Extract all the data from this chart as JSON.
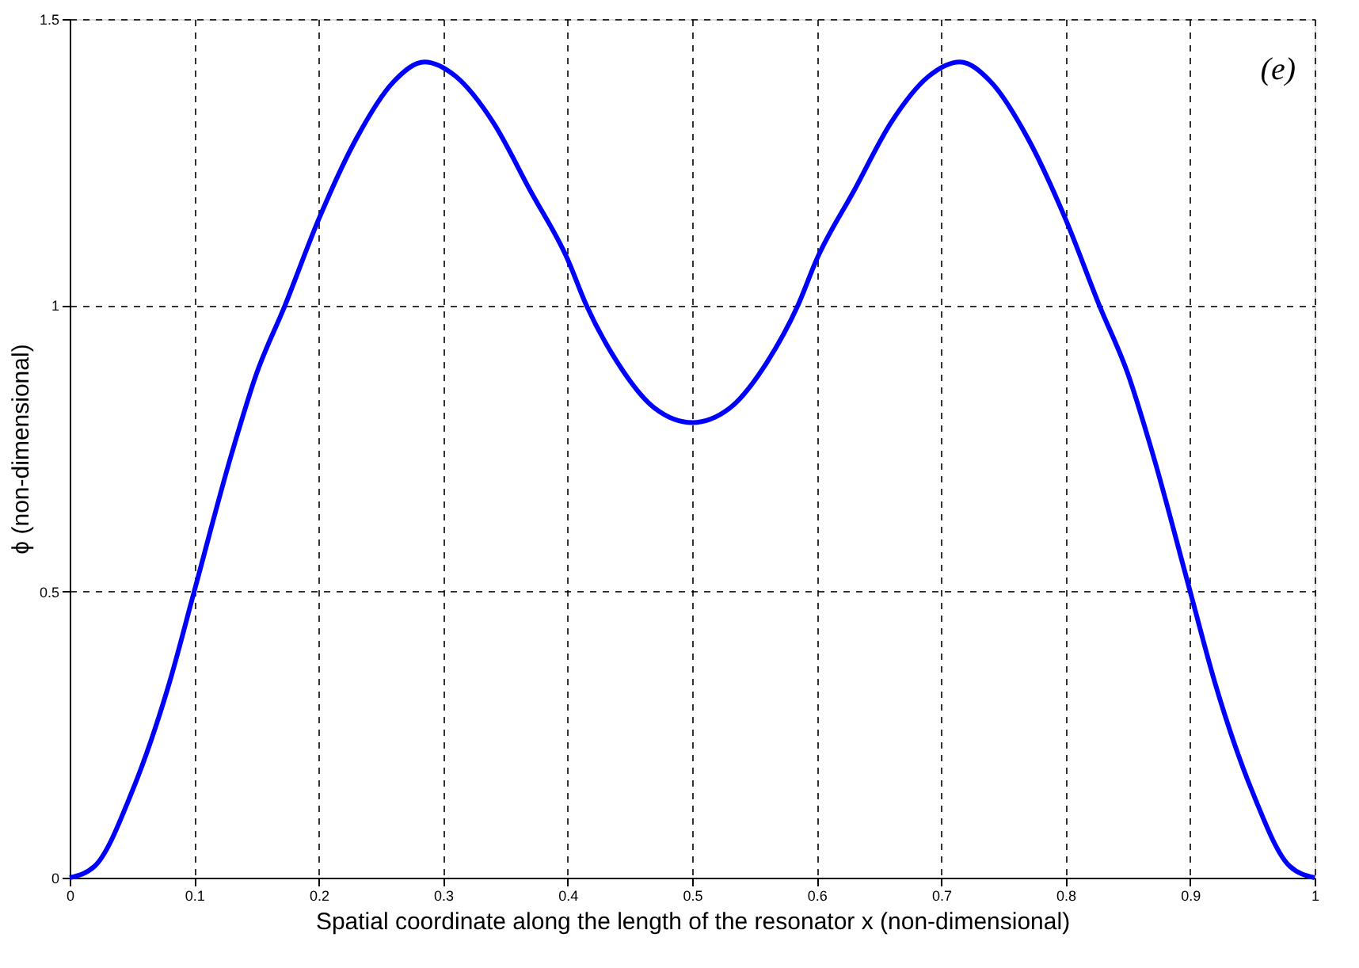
{
  "chart_data": {
    "type": "line",
    "xlabel": "Spatial coordinate along the length of the resonator x (non-dimensional)",
    "ylabel": "ϕ  (non-dimensional)",
    "annotations": [
      "(e)"
    ],
    "x": [
      0,
      0.02,
      0.05,
      0.08,
      0.1,
      0.13,
      0.15,
      0.173,
      0.2,
      0.23,
      0.26,
      0.285,
      0.31,
      0.34,
      0.37,
      0.4,
      0.415,
      0.44,
      0.47,
      0.5,
      0.53,
      0.56,
      0.585,
      0.6,
      0.63,
      0.66,
      0.69,
      0.715,
      0.74,
      0.77,
      0.8,
      0.827,
      0.85,
      0.87,
      0.9,
      0.92,
      0.95,
      0.98,
      1
    ],
    "series": [
      {
        "color": "#0000ff",
        "values": [
          0,
          0.02,
          0.15,
          0.34,
          0.5,
          0.74,
          0.88,
          1.0,
          1.15,
          1.29,
          1.39,
          1.425,
          1.4,
          1.32,
          1.2,
          1.08,
          1.0,
          0.9,
          0.82,
          0.795,
          0.82,
          0.9,
          1.0,
          1.08,
          1.2,
          1.32,
          1.4,
          1.425,
          1.39,
          1.29,
          1.15,
          1.0,
          0.88,
          0.74,
          0.5,
          0.34,
          0.15,
          0.02,
          0
        ]
      }
    ],
    "xlim": [
      0,
      1
    ],
    "xticks": [
      0,
      0.1,
      0.2,
      0.3,
      0.4,
      0.5,
      0.6,
      0.7,
      0.8,
      0.9,
      1
    ],
    "ylim": [
      0,
      1.5
    ],
    "yticks": [
      0,
      0.5,
      1,
      1.5
    ],
    "grid": true,
    "marker": "none",
    "line_style": "solid"
  }
}
